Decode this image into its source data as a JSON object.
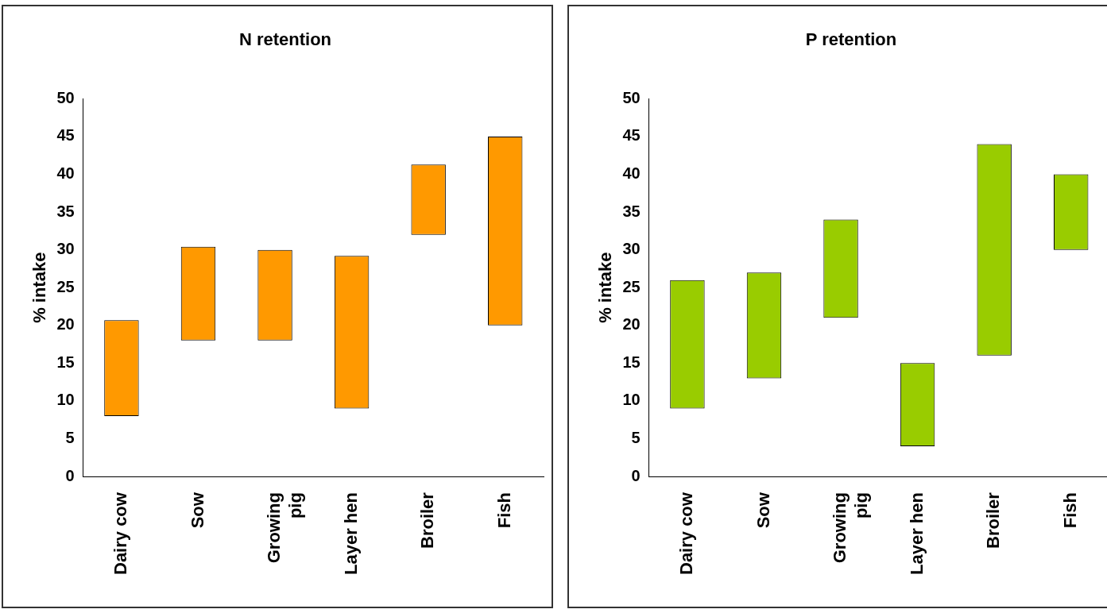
{
  "chart_data": [
    {
      "type": "bar",
      "title": "N retention",
      "ylabel": "% intake",
      "categories": [
        "Dairy cow",
        "Sow",
        "Growing pig",
        "Layer hen",
        "Broiler",
        "Fish"
      ],
      "base": [
        8,
        18,
        18,
        9,
        32,
        20
      ],
      "values": [
        12.7,
        12.4,
        12,
        20.2,
        9.3,
        25
      ],
      "color": "#ff9900",
      "ylim": [
        0,
        50
      ],
      "yticks": [
        0,
        5,
        10,
        15,
        20,
        25,
        30,
        35,
        40,
        45,
        50
      ],
      "grid": false,
      "legend": false
    },
    {
      "type": "bar",
      "title": "P retention",
      "ylabel": "% intake",
      "categories": [
        "Dairy cow",
        "Sow",
        "Growing pig",
        "Layer hen",
        "Broiler",
        "Fish"
      ],
      "base": [
        9,
        13,
        21,
        4,
        16,
        30
      ],
      "values": [
        17,
        14,
        13,
        11,
        28,
        10
      ],
      "color": "#99cc00",
      "ylim": [
        0,
        50
      ],
      "yticks": [
        0,
        5,
        10,
        15,
        20,
        25,
        30,
        35,
        40,
        45,
        50
      ],
      "grid": false,
      "legend": false
    }
  ]
}
